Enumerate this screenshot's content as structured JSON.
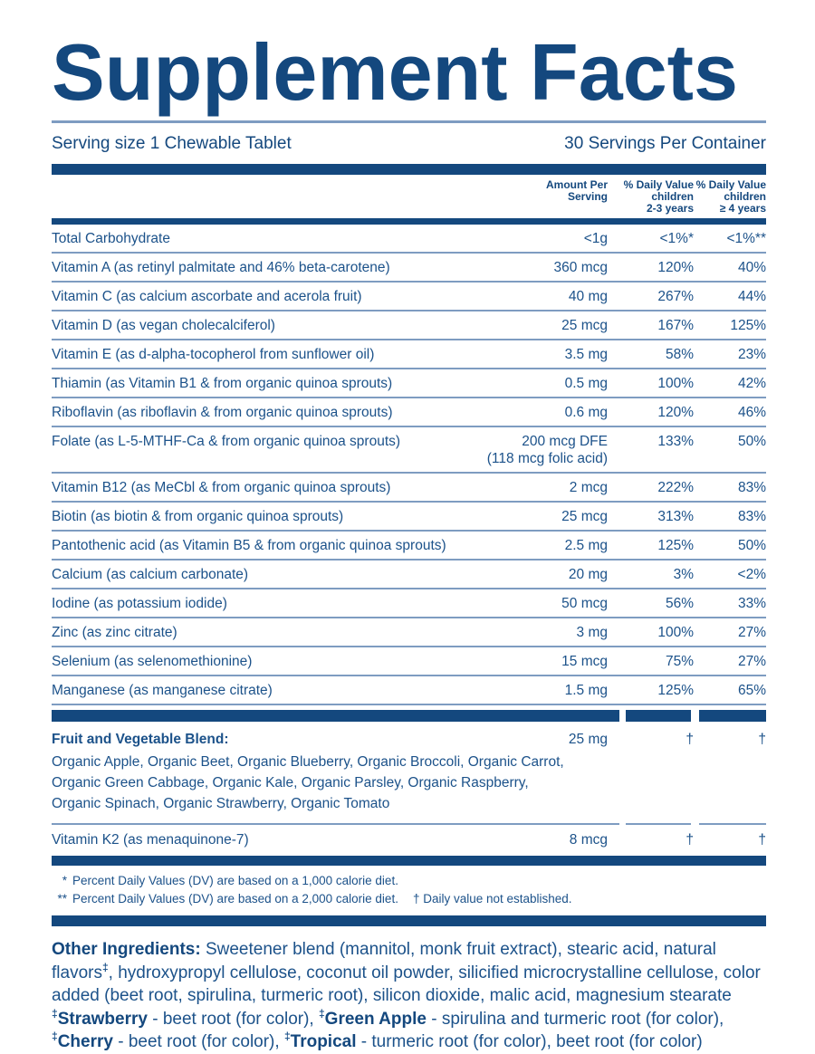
{
  "colors": {
    "navy": "#14487E",
    "text": "#1C528A",
    "rule": "#7E9CC1"
  },
  "title": "Supplement Facts",
  "serving": {
    "size": "Serving size 1 Chewable Tablet",
    "per_container": "30 Servings Per Container"
  },
  "columns": {
    "amount": "Amount Per\nServing",
    "dv_children_2_3": "% Daily Value\nchildren\n2-3 years",
    "dv_children_4plus": "% Daily Value\nchildren\n≥ 4 years"
  },
  "rows": [
    {
      "name": "Total Carbohydrate",
      "amount": "<1g",
      "dv1": "<1%*",
      "dv2": "<1%**"
    },
    {
      "name": "Vitamin A (as retinyl palmitate and 46% beta-carotene)",
      "amount": "360 mcg",
      "dv1": "120%",
      "dv2": "40%"
    },
    {
      "name": "Vitamin C (as calcium ascorbate and acerola fruit)",
      "amount": "40 mg",
      "dv1": "267%",
      "dv2": "44%"
    },
    {
      "name": "Vitamin D (as vegan cholecalciferol)",
      "amount": "25 mcg",
      "dv1": "167%",
      "dv2": "125%"
    },
    {
      "name": "Vitamin E (as d-alpha-tocopherol from sunflower oil)",
      "amount": "3.5 mg",
      "dv1": "58%",
      "dv2": "23%"
    },
    {
      "name": "Thiamin (as Vitamin B1 & from organic quinoa sprouts)",
      "amount": "0.5 mg",
      "dv1": "100%",
      "dv2": "42%"
    },
    {
      "name": "Riboflavin (as riboflavin & from organic quinoa sprouts)",
      "amount": "0.6 mg",
      "dv1": "120%",
      "dv2": "46%"
    },
    {
      "name": "Folate (as L-5-MTHF-Ca & from organic quinoa sprouts)",
      "amount": "200 mcg DFE\n(118 mcg folic acid)",
      "dv1": "133%",
      "dv2": "50%"
    },
    {
      "name": "Vitamin B12 (as MeCbl & from organic quinoa sprouts)",
      "amount": "2 mcg",
      "dv1": "222%",
      "dv2": "83%"
    },
    {
      "name": "Biotin (as biotin & from organic quinoa sprouts)",
      "amount": "25 mcg",
      "dv1": "313%",
      "dv2": "83%"
    },
    {
      "name": "Pantothenic acid (as Vitamin B5 & from organic quinoa sprouts)",
      "amount": "2.5 mg",
      "dv1": "125%",
      "dv2": "50%"
    },
    {
      "name": "Calcium (as calcium carbonate)",
      "amount": "20 mg",
      "dv1": "3%",
      "dv2": "<2%"
    },
    {
      "name": "Iodine (as potassium iodide)",
      "amount": "50 mcg",
      "dv1": "56%",
      "dv2": "33%"
    },
    {
      "name": "Zinc (as zinc citrate)",
      "amount": "3 mg",
      "dv1": "100%",
      "dv2": "27%"
    },
    {
      "name": "Selenium (as selenomethionine)",
      "amount": "15 mcg",
      "dv1": "75%",
      "dv2": "27%"
    },
    {
      "name": "Manganese (as manganese citrate)",
      "amount": "1.5 mg",
      "dv1": "125%",
      "dv2": "65%"
    }
  ],
  "blend": {
    "name": "Fruit and Vegetable Blend:",
    "amount": "25 mg",
    "dv1": "†",
    "dv2": "†",
    "ingredients": "Organic Apple, Organic Beet, Organic Blueberry, Organic Broccoli, Organic Carrot,\nOrganic Green Cabbage, Organic Kale, Organic Parsley, Organic Raspberry,\nOrganic Spinach, Organic Strawberry, Organic Tomato"
  },
  "vitamin_k2": {
    "name": "Vitamin K2 (as menaquinone-7)",
    "amount": "8 mcg",
    "dv1": "†",
    "dv2": "†"
  },
  "footnotes": {
    "one": {
      "marker": "*",
      "text": "Percent Daily Values (DV) are based on a 1,000 calorie diet."
    },
    "two": {
      "marker": "**",
      "text": "Percent Daily Values (DV) are based on a 2,000 calorie diet.",
      "extra": "† Daily value not established."
    }
  },
  "other_ingredients": {
    "label": "Other Ingredients:",
    "before_sup": " Sweetener blend (mannitol, monk fruit extract), stearic acid, natural flavors",
    "sup": "‡",
    "after_sup": ", hydroxypropyl cellulose, coconut oil powder, silicified microcrystalline cellulose, color added (beet root, spirulina, turmeric root), silicon dioxide, malic acid, magnesium stearate"
  },
  "flavor_notes": {
    "line1": [
      {
        "sup": "‡",
        "name": "Strawberry",
        "text": " - beet root (for color), "
      },
      {
        "sup": "‡",
        "name": "Green Apple",
        "text": " - spirulina and turmeric root (for color),"
      }
    ],
    "line2": [
      {
        "sup": "‡",
        "name": "Cherry",
        "text": " - beet root (for color), "
      },
      {
        "sup": "‡",
        "name": "Tropical",
        "text": " - turmeric root (for color), beet root (for color)"
      }
    ]
  }
}
